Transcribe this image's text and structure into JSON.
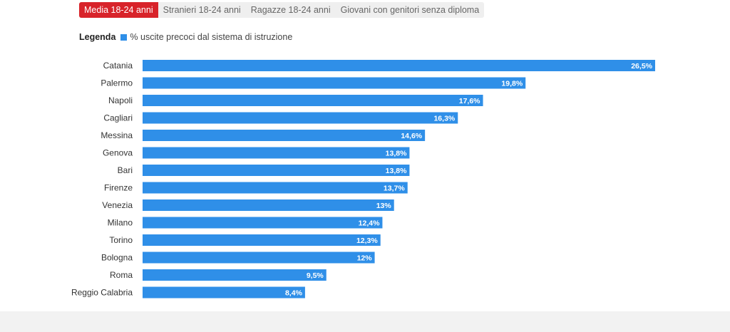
{
  "tabs": [
    {
      "label": "Media 18-24 anni",
      "active": true
    },
    {
      "label": "Stranieri 18-24 anni",
      "active": false
    },
    {
      "label": "Ragazze 18-24 anni",
      "active": false
    },
    {
      "label": "Giovani con genitori senza diploma",
      "active": false
    }
  ],
  "legend": {
    "title": "Legenda",
    "label": "% uscite precoci dal sistema di istruzione"
  },
  "colors": {
    "accent": "#d8232a",
    "bar": "#2f8fe8"
  },
  "chart_data": {
    "type": "bar",
    "orientation": "horizontal",
    "title": "",
    "xlabel": "",
    "ylabel": "",
    "grid": false,
    "legend_position": "top-left",
    "categories": [
      "Catania",
      "Palermo",
      "Napoli",
      "Cagliari",
      "Messina",
      "Genova",
      "Bari",
      "Firenze",
      "Venezia",
      "Milano",
      "Torino",
      "Bologna",
      "Roma",
      "Reggio Calabria"
    ],
    "series": [
      {
        "name": "% uscite precoci dal sistema di istruzione",
        "values": [
          26.5,
          19.8,
          17.6,
          16.3,
          14.6,
          13.8,
          13.8,
          13.7,
          13,
          12.4,
          12.3,
          12,
          9.5,
          8.4
        ]
      }
    ],
    "value_labels": [
      "26,5%",
      "19,8%",
      "17,6%",
      "16,3%",
      "14,6%",
      "13,8%",
      "13,8%",
      "13,7%",
      "13%",
      "12,4%",
      "12,3%",
      "12%",
      "9,5%",
      "8,4%"
    ],
    "xlim": [
      0,
      26.5
    ]
  }
}
